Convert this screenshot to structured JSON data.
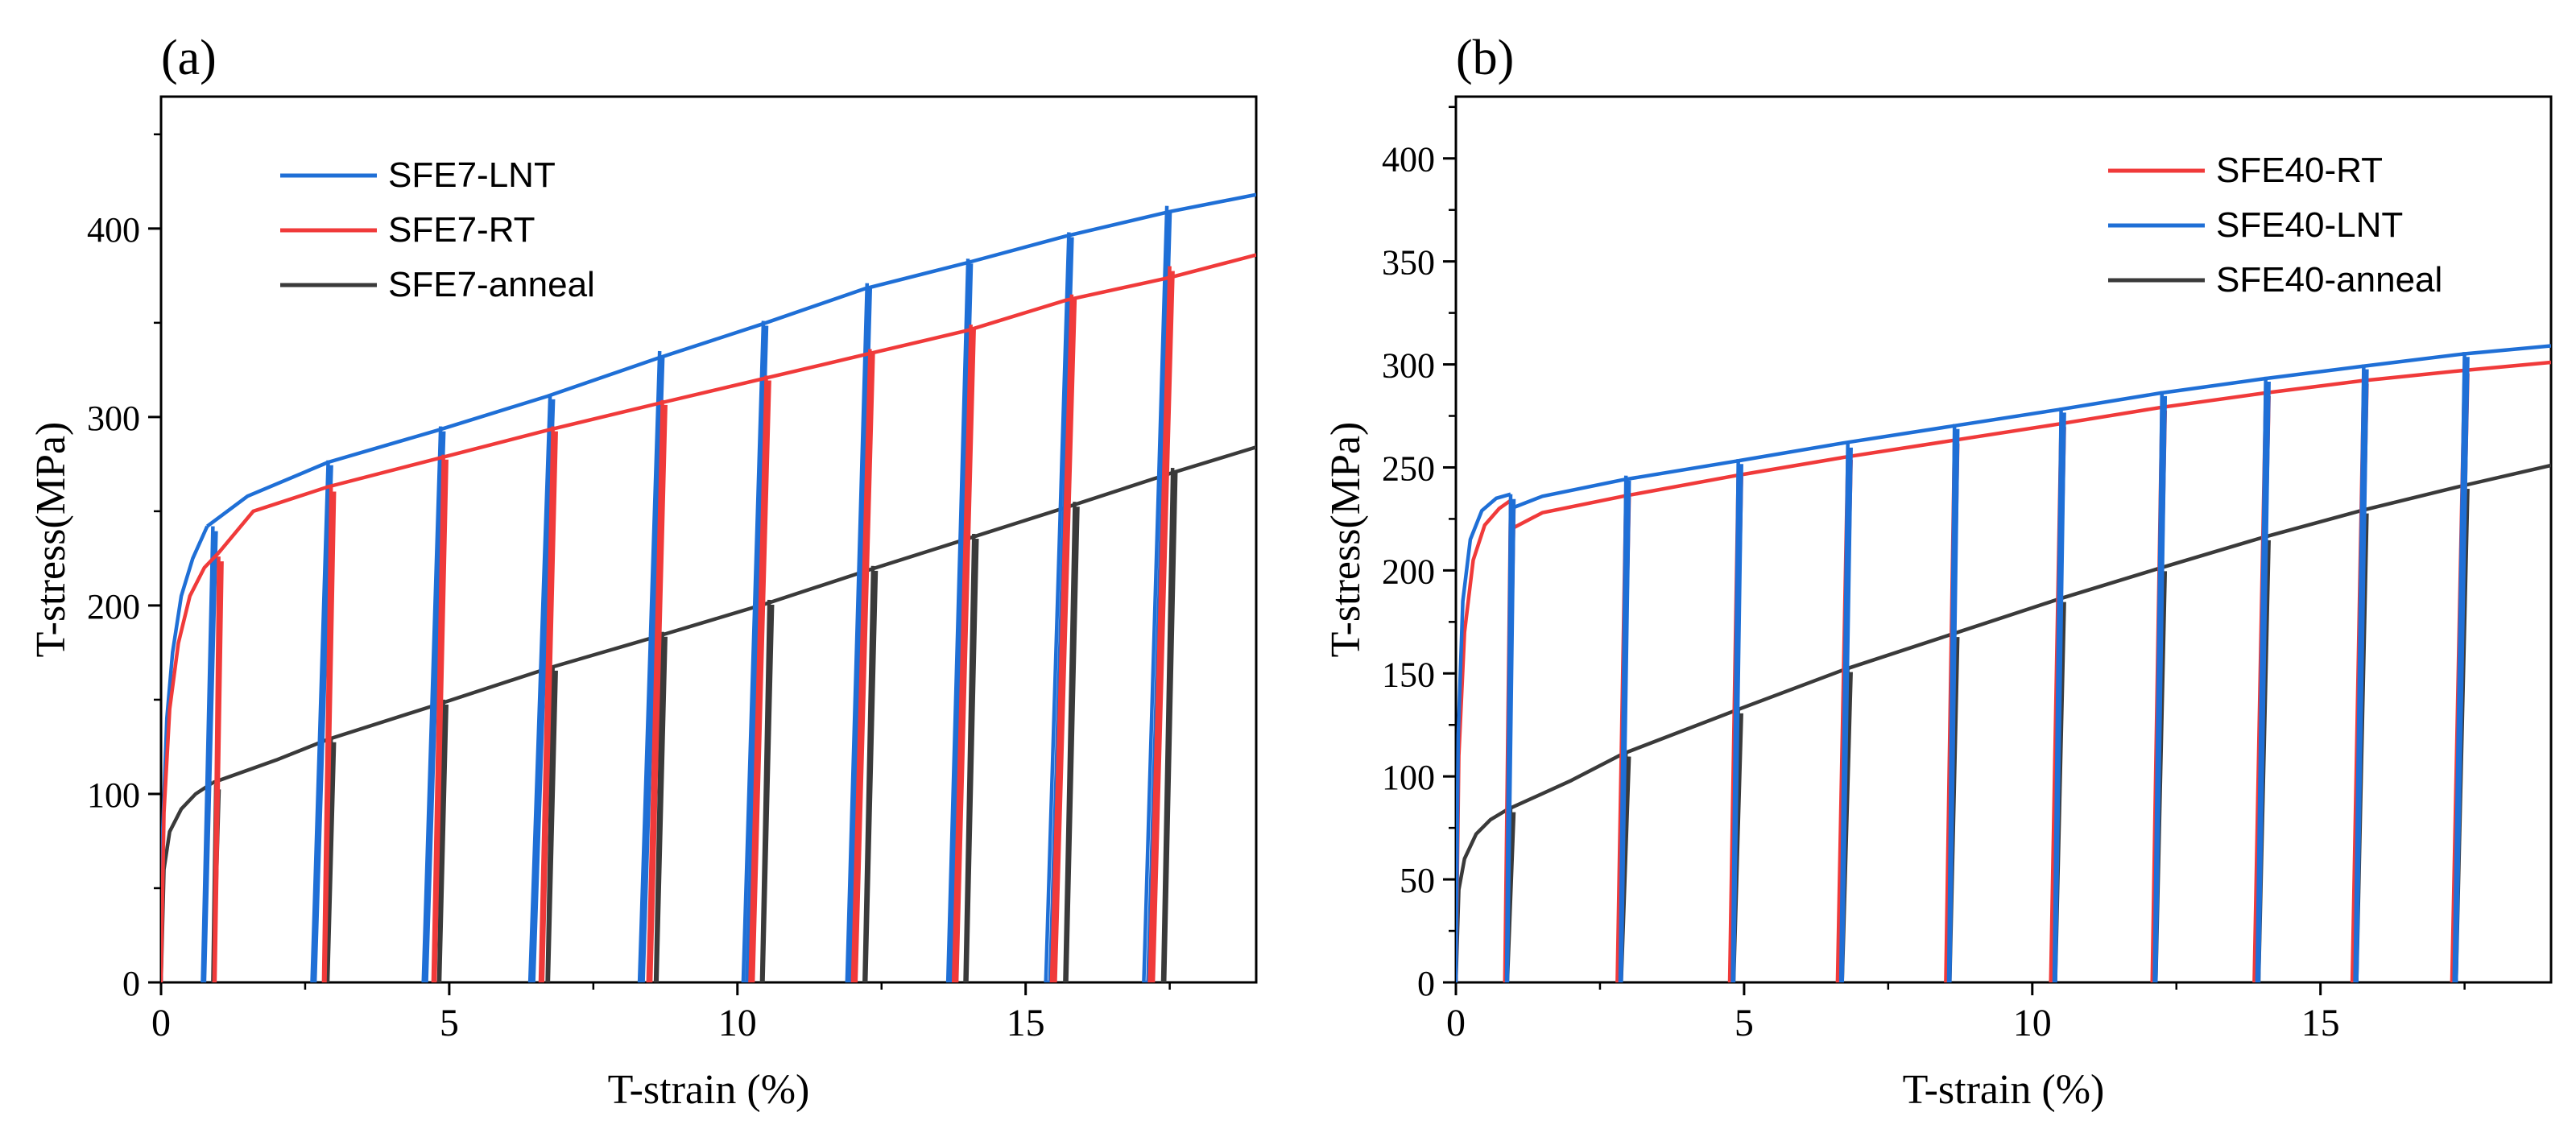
{
  "figure": {
    "panels": [
      "(a)",
      "(b)"
    ]
  },
  "chart_data": [
    {
      "panel": "(a)",
      "type": "line",
      "title": "",
      "xlabel": "T-strain (%)",
      "ylabel": "T-stress(MPa)",
      "xlim": [
        0,
        19
      ],
      "ylim": [
        0,
        470
      ],
      "xticks": [
        0,
        5,
        10,
        15
      ],
      "yticks": [
        0,
        100,
        200,
        300,
        400
      ],
      "legend_position": "top-left",
      "series": [
        {
          "name": "SFE7-LNT",
          "color": "#1f6fd6",
          "start": [
            0,
            0
          ],
          "initial_curve": [
            [
              0,
              0
            ],
            [
              0.03,
              80
            ],
            [
              0.1,
              140
            ],
            [
              0.2,
              175
            ],
            [
              0.35,
              205
            ],
            [
              0.55,
              225
            ],
            [
              0.8,
              242
            ]
          ],
          "flow_curve": [
            [
              0.8,
              242
            ],
            [
              1.5,
              258
            ],
            [
              2.9,
              276
            ],
            [
              4.8,
              293
            ],
            [
              6.7,
              311
            ],
            [
              8.6,
              331
            ],
            [
              10.4,
              349
            ],
            [
              12.2,
              368
            ],
            [
              14.0,
              382
            ],
            [
              15.7,
              396
            ],
            [
              17.5,
              409
            ],
            [
              19.0,
              418
            ]
          ],
          "unload_cycles": [
            {
              "peak_strain": 0.9,
              "peak_stress": 242,
              "zero_strain": 0.72
            },
            {
              "peak_strain": 2.9,
              "peak_stress": 277,
              "zero_strain": 2.62
            },
            {
              "peak_strain": 4.85,
              "peak_stress": 295,
              "zero_strain": 4.55
            },
            {
              "peak_strain": 6.75,
              "peak_stress": 312,
              "zero_strain": 6.4
            },
            {
              "peak_strain": 8.65,
              "peak_stress": 335,
              "zero_strain": 8.3
            },
            {
              "peak_strain": 10.45,
              "peak_stress": 351,
              "zero_strain": 10.1
            },
            {
              "peak_strain": 12.25,
              "peak_stress": 371,
              "zero_strain": 11.9
            },
            {
              "peak_strain": 14.0,
              "peak_stress": 384,
              "zero_strain": 13.65
            },
            {
              "peak_strain": 15.75,
              "peak_stress": 398,
              "zero_strain": 15.35
            },
            {
              "peak_strain": 17.45,
              "peak_stress": 412,
              "zero_strain": 17.05
            }
          ]
        },
        {
          "name": "SFE7-RT",
          "color": "#f03a3a",
          "start": [
            0,
            0
          ],
          "initial_curve": [
            [
              0,
              0
            ],
            [
              0.05,
              90
            ],
            [
              0.15,
              145
            ],
            [
              0.3,
              180
            ],
            [
              0.5,
              205
            ],
            [
              0.75,
              220
            ],
            [
              1.0,
              228
            ]
          ],
          "flow_curve": [
            [
              1.0,
              228
            ],
            [
              1.6,
              250
            ],
            [
              2.9,
              263
            ],
            [
              4.8,
              278
            ],
            [
              6.7,
              293
            ],
            [
              8.6,
              307
            ],
            [
              10.4,
              320
            ],
            [
              12.2,
              333
            ],
            [
              14.0,
              346
            ],
            [
              15.7,
              362
            ],
            [
              17.5,
              374
            ],
            [
              19.0,
              386
            ]
          ],
          "unload_cycles": [
            {
              "peak_strain": 1.0,
              "peak_stress": 226,
              "zero_strain": 0.92
            },
            {
              "peak_strain": 2.95,
              "peak_stress": 263,
              "zero_strain": 2.82
            },
            {
              "peak_strain": 4.9,
              "peak_stress": 280,
              "zero_strain": 4.72
            },
            {
              "peak_strain": 6.8,
              "peak_stress": 295,
              "zero_strain": 6.58
            },
            {
              "peak_strain": 8.7,
              "peak_stress": 309,
              "zero_strain": 8.45
            },
            {
              "peak_strain": 10.5,
              "peak_stress": 322,
              "zero_strain": 10.22
            },
            {
              "peak_strain": 12.3,
              "peak_stress": 336,
              "zero_strain": 12.0
            },
            {
              "peak_strain": 14.05,
              "peak_stress": 349,
              "zero_strain": 13.75
            },
            {
              "peak_strain": 15.8,
              "peak_stress": 365,
              "zero_strain": 15.45
            },
            {
              "peak_strain": 17.5,
              "peak_stress": 380,
              "zero_strain": 17.15
            }
          ]
        },
        {
          "name": "SFE7-anneal",
          "color": "#3a3a3a",
          "start": [
            0,
            0
          ],
          "initial_curve": [
            [
              0,
              0
            ],
            [
              0.05,
              60
            ],
            [
              0.15,
              80
            ],
            [
              0.35,
              92
            ],
            [
              0.6,
              100
            ],
            [
              0.9,
              106
            ]
          ],
          "flow_curve": [
            [
              0.9,
              106
            ],
            [
              2.0,
              118
            ],
            [
              2.9,
              129
            ],
            [
              4.85,
              148
            ],
            [
              6.75,
              167
            ],
            [
              8.65,
              184
            ],
            [
              10.5,
              201
            ],
            [
              12.3,
              219
            ],
            [
              14.05,
              236
            ],
            [
              15.8,
              253
            ],
            [
              17.5,
              270
            ],
            [
              19.0,
              284
            ]
          ],
          "unload_cycles": [
            {
              "peak_strain": 0.95,
              "peak_stress": 105,
              "zero_strain": 0.9
            },
            {
              "peak_strain": 2.95,
              "peak_stress": 130,
              "zero_strain": 2.88
            },
            {
              "peak_strain": 4.9,
              "peak_stress": 150,
              "zero_strain": 4.82
            },
            {
              "peak_strain": 6.8,
              "peak_stress": 168,
              "zero_strain": 6.7
            },
            {
              "peak_strain": 8.7,
              "peak_stress": 186,
              "zero_strain": 8.58
            },
            {
              "peak_strain": 10.55,
              "peak_stress": 203,
              "zero_strain": 10.42
            },
            {
              "peak_strain": 12.35,
              "peak_stress": 221,
              "zero_strain": 12.2
            },
            {
              "peak_strain": 14.1,
              "peak_stress": 238,
              "zero_strain": 13.95
            },
            {
              "peak_strain": 15.85,
              "peak_stress": 255,
              "zero_strain": 15.68
            },
            {
              "peak_strain": 17.55,
              "peak_stress": 273,
              "zero_strain": 17.38
            }
          ]
        }
      ]
    },
    {
      "panel": "(b)",
      "type": "line",
      "title": "",
      "xlabel": "T-strain (%)",
      "ylabel": "T-stress(MPa)",
      "xlim": [
        0,
        19
      ],
      "ylim": [
        0,
        430
      ],
      "xticks": [
        0,
        5,
        10,
        15
      ],
      "yticks": [
        0,
        50,
        100,
        150,
        200,
        250,
        300,
        350,
        400
      ],
      "legend_position": "top-right",
      "series": [
        {
          "name": "SFE40-RT",
          "color": "#f03a3a",
          "start": [
            0,
            0
          ],
          "initial_curve": [
            [
              0,
              0
            ],
            [
              0.05,
              110
            ],
            [
              0.15,
              170
            ],
            [
              0.3,
              205
            ],
            [
              0.5,
              222
            ],
            [
              0.75,
              230
            ],
            [
              0.95,
              234
            ]
          ],
          "flow_curve": [
            [
              0.95,
              220
            ],
            [
              1.5,
              228
            ],
            [
              2.9,
              236
            ],
            [
              4.85,
              246
            ],
            [
              6.75,
              255
            ],
            [
              8.6,
              263
            ],
            [
              10.45,
              271
            ],
            [
              12.2,
              279
            ],
            [
              14.0,
              286
            ],
            [
              15.7,
              292
            ],
            [
              17.45,
              297
            ],
            [
              19.0,
              301
            ]
          ],
          "unload_cycles": [
            {
              "peak_strain": 0.95,
              "peak_stress": 234,
              "zero_strain": 0.85
            },
            {
              "peak_strain": 2.95,
              "peak_stress": 238,
              "zero_strain": 2.8
            },
            {
              "peak_strain": 4.9,
              "peak_stress": 248,
              "zero_strain": 4.75
            },
            {
              "peak_strain": 6.8,
              "peak_stress": 256,
              "zero_strain": 6.62
            },
            {
              "peak_strain": 8.65,
              "peak_stress": 264,
              "zero_strain": 8.5
            },
            {
              "peak_strain": 10.5,
              "peak_stress": 272,
              "zero_strain": 10.32
            },
            {
              "peak_strain": 12.25,
              "peak_stress": 280,
              "zero_strain": 12.08
            },
            {
              "peak_strain": 14.05,
              "peak_stress": 287,
              "zero_strain": 13.85
            },
            {
              "peak_strain": 15.75,
              "peak_stress": 293,
              "zero_strain": 15.55
            },
            {
              "peak_strain": 17.5,
              "peak_stress": 298,
              "zero_strain": 17.28
            }
          ]
        },
        {
          "name": "SFE40-LNT",
          "color": "#1f6fd6",
          "start": [
            0,
            0
          ],
          "initial_curve": [
            [
              0,
              0
            ],
            [
              0.04,
              120
            ],
            [
              0.12,
              185
            ],
            [
              0.25,
              215
            ],
            [
              0.45,
              229
            ],
            [
              0.7,
              235
            ],
            [
              0.95,
              237
            ]
          ],
          "flow_curve": [
            [
              0.95,
              230
            ],
            [
              1.5,
              236
            ],
            [
              2.9,
              244
            ],
            [
              4.85,
              253
            ],
            [
              6.75,
              262
            ],
            [
              8.6,
              270
            ],
            [
              10.45,
              278
            ],
            [
              12.2,
              286
            ],
            [
              14.0,
              293
            ],
            [
              15.7,
              299
            ],
            [
              17.45,
              305
            ],
            [
              19.0,
              309
            ]
          ],
          "unload_cycles": [
            {
              "peak_strain": 0.95,
              "peak_stress": 237,
              "zero_strain": 0.88
            },
            {
              "peak_strain": 2.95,
              "peak_stress": 246,
              "zero_strain": 2.85
            },
            {
              "peak_strain": 4.9,
              "peak_stress": 254,
              "zero_strain": 4.8
            },
            {
              "peak_strain": 6.8,
              "peak_stress": 262,
              "zero_strain": 6.68
            },
            {
              "peak_strain": 8.65,
              "peak_stress": 271,
              "zero_strain": 8.55
            },
            {
              "peak_strain": 10.5,
              "peak_stress": 279,
              "zero_strain": 10.38
            },
            {
              "peak_strain": 12.25,
              "peak_stress": 287,
              "zero_strain": 12.12
            },
            {
              "peak_strain": 14.05,
              "peak_stress": 294,
              "zero_strain": 13.9
            },
            {
              "peak_strain": 15.75,
              "peak_stress": 300,
              "zero_strain": 15.6
            },
            {
              "peak_strain": 17.5,
              "peak_stress": 306,
              "zero_strain": 17.32
            }
          ]
        },
        {
          "name": "SFE40-anneal",
          "color": "#3a3a3a",
          "start": [
            0,
            0
          ],
          "initial_curve": [
            [
              0,
              0
            ],
            [
              0.05,
              45
            ],
            [
              0.15,
              60
            ],
            [
              0.35,
              72
            ],
            [
              0.6,
              79
            ],
            [
              0.9,
              84
            ]
          ],
          "flow_curve": [
            [
              0.9,
              84
            ],
            [
              2.0,
              98
            ],
            [
              2.9,
              111
            ],
            [
              4.85,
              132
            ],
            [
              6.75,
              152
            ],
            [
              8.6,
              169
            ],
            [
              10.45,
              186
            ],
            [
              12.2,
              201
            ],
            [
              14.0,
              216
            ],
            [
              15.7,
              229
            ],
            [
              17.45,
              241
            ],
            [
              19.0,
              251
            ]
          ],
          "unload_cycles": [
            {
              "peak_strain": 0.95,
              "peak_stress": 85,
              "zero_strain": 0.88
            },
            {
              "peak_strain": 2.95,
              "peak_stress": 112,
              "zero_strain": 2.85
            },
            {
              "peak_strain": 4.9,
              "peak_stress": 133,
              "zero_strain": 4.8
            },
            {
              "peak_strain": 6.8,
              "peak_stress": 153,
              "zero_strain": 6.68
            },
            {
              "peak_strain": 8.65,
              "peak_stress": 170,
              "zero_strain": 8.55
            },
            {
              "peak_strain": 10.5,
              "peak_stress": 187,
              "zero_strain": 10.38
            },
            {
              "peak_strain": 12.25,
              "peak_stress": 202,
              "zero_strain": 12.12
            },
            {
              "peak_strain": 14.05,
              "peak_stress": 217,
              "zero_strain": 13.9
            },
            {
              "peak_strain": 15.75,
              "peak_stress": 230,
              "zero_strain": 15.6
            },
            {
              "peak_strain": 17.5,
              "peak_stress": 242,
              "zero_strain": 17.32
            }
          ]
        }
      ]
    }
  ]
}
